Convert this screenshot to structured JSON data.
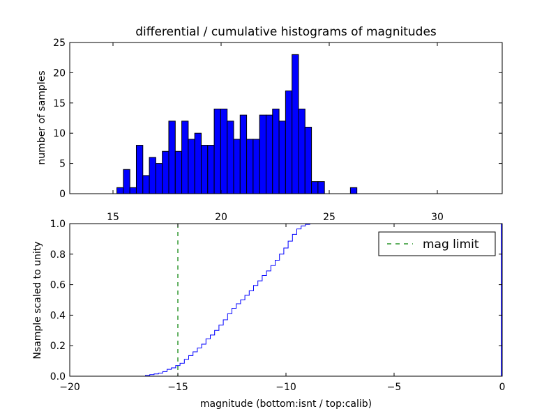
{
  "colors": {
    "bar_fill": "#0000ff",
    "cum_line": "#0000ff",
    "limit_line": "#008000",
    "axes": "#000000"
  },
  "chart_data": [
    {
      "id": "top",
      "type": "bar",
      "title": "differential / cumulative histograms of magnitudes",
      "xlabel": "",
      "ylabel": "number of samples",
      "xlim": [
        13,
        33
      ],
      "ylim": [
        0,
        25
      ],
      "xticks": [
        15,
        20,
        25,
        30
      ],
      "yticks": [
        0,
        5,
        10,
        15,
        20,
        25
      ],
      "bin_width": 0.3,
      "bins": [
        {
          "x": 15.18,
          "v": 1
        },
        {
          "x": 15.48,
          "v": 4
        },
        {
          "x": 15.78,
          "v": 1
        },
        {
          "x": 16.08,
          "v": 8
        },
        {
          "x": 16.38,
          "v": 3
        },
        {
          "x": 16.68,
          "v": 6
        },
        {
          "x": 16.98,
          "v": 5
        },
        {
          "x": 17.28,
          "v": 7
        },
        {
          "x": 17.58,
          "v": 12
        },
        {
          "x": 17.88,
          "v": 7
        },
        {
          "x": 18.18,
          "v": 12
        },
        {
          "x": 18.48,
          "v": 9
        },
        {
          "x": 18.78,
          "v": 10
        },
        {
          "x": 19.08,
          "v": 8
        },
        {
          "x": 19.38,
          "v": 8
        },
        {
          "x": 19.68,
          "v": 14
        },
        {
          "x": 19.98,
          "v": 14
        },
        {
          "x": 20.28,
          "v": 12
        },
        {
          "x": 20.58,
          "v": 9
        },
        {
          "x": 20.88,
          "v": 13
        },
        {
          "x": 21.18,
          "v": 9
        },
        {
          "x": 21.48,
          "v": 9
        },
        {
          "x": 21.78,
          "v": 13
        },
        {
          "x": 22.08,
          "v": 13
        },
        {
          "x": 22.38,
          "v": 14
        },
        {
          "x": 22.68,
          "v": 12
        },
        {
          "x": 22.98,
          "v": 17
        },
        {
          "x": 23.28,
          "v": 23
        },
        {
          "x": 23.58,
          "v": 14
        },
        {
          "x": 23.88,
          "v": 11
        },
        {
          "x": 24.18,
          "v": 2
        },
        {
          "x": 24.48,
          "v": 2
        },
        {
          "x": 25.98,
          "v": 1
        }
      ]
    },
    {
      "id": "bottom",
      "type": "line",
      "title": "",
      "xlabel": "magnitude (bottom:isnt / top:calib)",
      "ylabel": "Nsample scaled to unity",
      "xlim": [
        -20,
        0
      ],
      "ylim": [
        0,
        1
      ],
      "xticks": [
        -20,
        -15,
        -10,
        -5,
        0
      ],
      "xtick_labels": [
        "−20",
        "−15",
        "−10",
        "−5",
        "0"
      ],
      "yticks": [
        0,
        0.2,
        0.4,
        0.6,
        0.8,
        1.0
      ],
      "ytick_labels": [
        "0.0",
        "0.2",
        "0.4",
        "0.6",
        "0.8",
        "1.0"
      ],
      "series": [
        {
          "name": "cumulative",
          "style": "step",
          "points": [
            [
              -20.0,
              0.0
            ],
            [
              -16.7,
              0.0
            ],
            [
              -16.5,
              0.005
            ],
            [
              -16.3,
              0.01
            ],
            [
              -16.1,
              0.015
            ],
            [
              -15.9,
              0.02
            ],
            [
              -15.7,
              0.03
            ],
            [
              -15.5,
              0.045
            ],
            [
              -15.3,
              0.055
            ],
            [
              -15.1,
              0.07
            ],
            [
              -14.9,
              0.085
            ],
            [
              -14.7,
              0.11
            ],
            [
              -14.5,
              0.135
            ],
            [
              -14.3,
              0.16
            ],
            [
              -14.1,
              0.185
            ],
            [
              -13.9,
              0.21
            ],
            [
              -13.7,
              0.245
            ],
            [
              -13.5,
              0.27
            ],
            [
              -13.3,
              0.3
            ],
            [
              -13.1,
              0.335
            ],
            [
              -12.9,
              0.37
            ],
            [
              -12.7,
              0.41
            ],
            [
              -12.5,
              0.445
            ],
            [
              -12.3,
              0.475
            ],
            [
              -12.1,
              0.5
            ],
            [
              -11.9,
              0.53
            ],
            [
              -11.7,
              0.56
            ],
            [
              -11.5,
              0.595
            ],
            [
              -11.3,
              0.625
            ],
            [
              -11.1,
              0.66
            ],
            [
              -10.9,
              0.69
            ],
            [
              -10.7,
              0.725
            ],
            [
              -10.5,
              0.76
            ],
            [
              -10.3,
              0.8
            ],
            [
              -10.1,
              0.84
            ],
            [
              -9.9,
              0.885
            ],
            [
              -9.7,
              0.93
            ],
            [
              -9.5,
              0.965
            ],
            [
              -9.3,
              0.985
            ],
            [
              -9.1,
              0.995
            ],
            [
              -8.9,
              1.0
            ],
            [
              0.0,
              1.0
            ]
          ]
        }
      ],
      "limit": {
        "name": "mag limit",
        "x": -15.0
      },
      "legend_position": "top-right"
    }
  ]
}
